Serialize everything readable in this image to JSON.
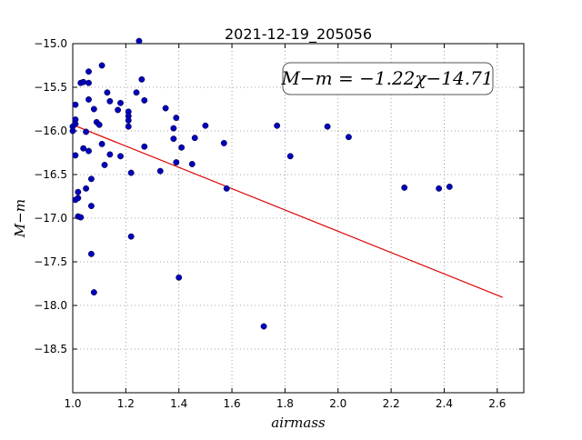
{
  "chart_data": {
    "type": "scatter",
    "title": "2021-12-19_205056",
    "xlabel": "airmass",
    "ylabel": "M−m",
    "xlim": [
      1.0,
      2.7
    ],
    "ylim": [
      -19.0,
      -15.0
    ],
    "xticks": [
      1.0,
      1.2,
      1.4,
      1.6,
      1.8,
      2.0,
      2.2,
      2.4,
      2.6
    ],
    "xtick_labels": [
      "1.0",
      "1.2",
      "1.4",
      "1.6",
      "1.8",
      "2.0",
      "2.2",
      "2.4",
      "2.6"
    ],
    "yticks": [
      -15.0,
      -15.5,
      -16.0,
      -16.5,
      -17.0,
      -17.5,
      -18.0,
      -18.5
    ],
    "ytick_labels": [
      "−15.0",
      "−15.5",
      "−16.0",
      "−16.5",
      "−17.0",
      "−17.5",
      "−18.0",
      "−18.5"
    ],
    "grid": true,
    "annotation": "M−m = −1.22χ−14.71",
    "fit": {
      "slope": -1.22,
      "intercept": -14.71,
      "x_range": [
        1.01,
        2.62
      ],
      "color": "#dd0000"
    },
    "marker_color": "#0000bb",
    "points": [
      [
        1.0,
        -15.95
      ],
      [
        1.0,
        -16.0
      ],
      [
        1.01,
        -15.7
      ],
      [
        1.01,
        -15.87
      ],
      [
        1.01,
        -15.92
      ],
      [
        1.01,
        -16.28
      ],
      [
        1.01,
        -16.79
      ],
      [
        1.02,
        -16.77
      ],
      [
        1.02,
        -16.7
      ],
      [
        1.02,
        -16.98
      ],
      [
        1.03,
        -16.99
      ],
      [
        1.03,
        -15.45
      ],
      [
        1.04,
        -15.44
      ],
      [
        1.04,
        -16.2
      ],
      [
        1.05,
        -16.66
      ],
      [
        1.05,
        -16.01
      ],
      [
        1.06,
        -15.32
      ],
      [
        1.06,
        -15.45
      ],
      [
        1.06,
        -15.64
      ],
      [
        1.06,
        -16.23
      ],
      [
        1.07,
        -16.55
      ],
      [
        1.07,
        -16.86
      ],
      [
        1.07,
        -17.41
      ],
      [
        1.08,
        -17.85
      ],
      [
        1.08,
        -15.75
      ],
      [
        1.09,
        -15.9
      ],
      [
        1.1,
        -15.93
      ],
      [
        1.11,
        -15.25
      ],
      [
        1.11,
        -16.15
      ],
      [
        1.12,
        -16.39
      ],
      [
        1.13,
        -15.56
      ],
      [
        1.14,
        -15.66
      ],
      [
        1.14,
        -16.27
      ],
      [
        1.17,
        -15.76
      ],
      [
        1.18,
        -15.68
      ],
      [
        1.18,
        -16.29
      ],
      [
        1.21,
        -15.95
      ],
      [
        1.21,
        -15.78
      ],
      [
        1.21,
        -15.83
      ],
      [
        1.21,
        -15.88
      ],
      [
        1.22,
        -16.48
      ],
      [
        1.22,
        -17.21
      ],
      [
        1.24,
        -15.56
      ],
      [
        1.25,
        -14.97
      ],
      [
        1.26,
        -15.41
      ],
      [
        1.27,
        -15.65
      ],
      [
        1.27,
        -16.18
      ],
      [
        1.33,
        -16.46
      ],
      [
        1.35,
        -15.74
      ],
      [
        1.38,
        -15.97
      ],
      [
        1.38,
        -16.09
      ],
      [
        1.39,
        -15.85
      ],
      [
        1.39,
        -16.36
      ],
      [
        1.4,
        -17.68
      ],
      [
        1.41,
        -16.19
      ],
      [
        1.45,
        -16.38
      ],
      [
        1.46,
        -16.08
      ],
      [
        1.5,
        -15.94
      ],
      [
        1.57,
        -16.14
      ],
      [
        1.58,
        -16.66
      ],
      [
        1.72,
        -18.24
      ],
      [
        1.77,
        -15.94
      ],
      [
        1.82,
        -16.29
      ],
      [
        1.96,
        -15.95
      ],
      [
        2.04,
        -16.07
      ],
      [
        2.25,
        -16.65
      ],
      [
        2.38,
        -16.66
      ],
      [
        2.42,
        -16.64
      ]
    ]
  }
}
